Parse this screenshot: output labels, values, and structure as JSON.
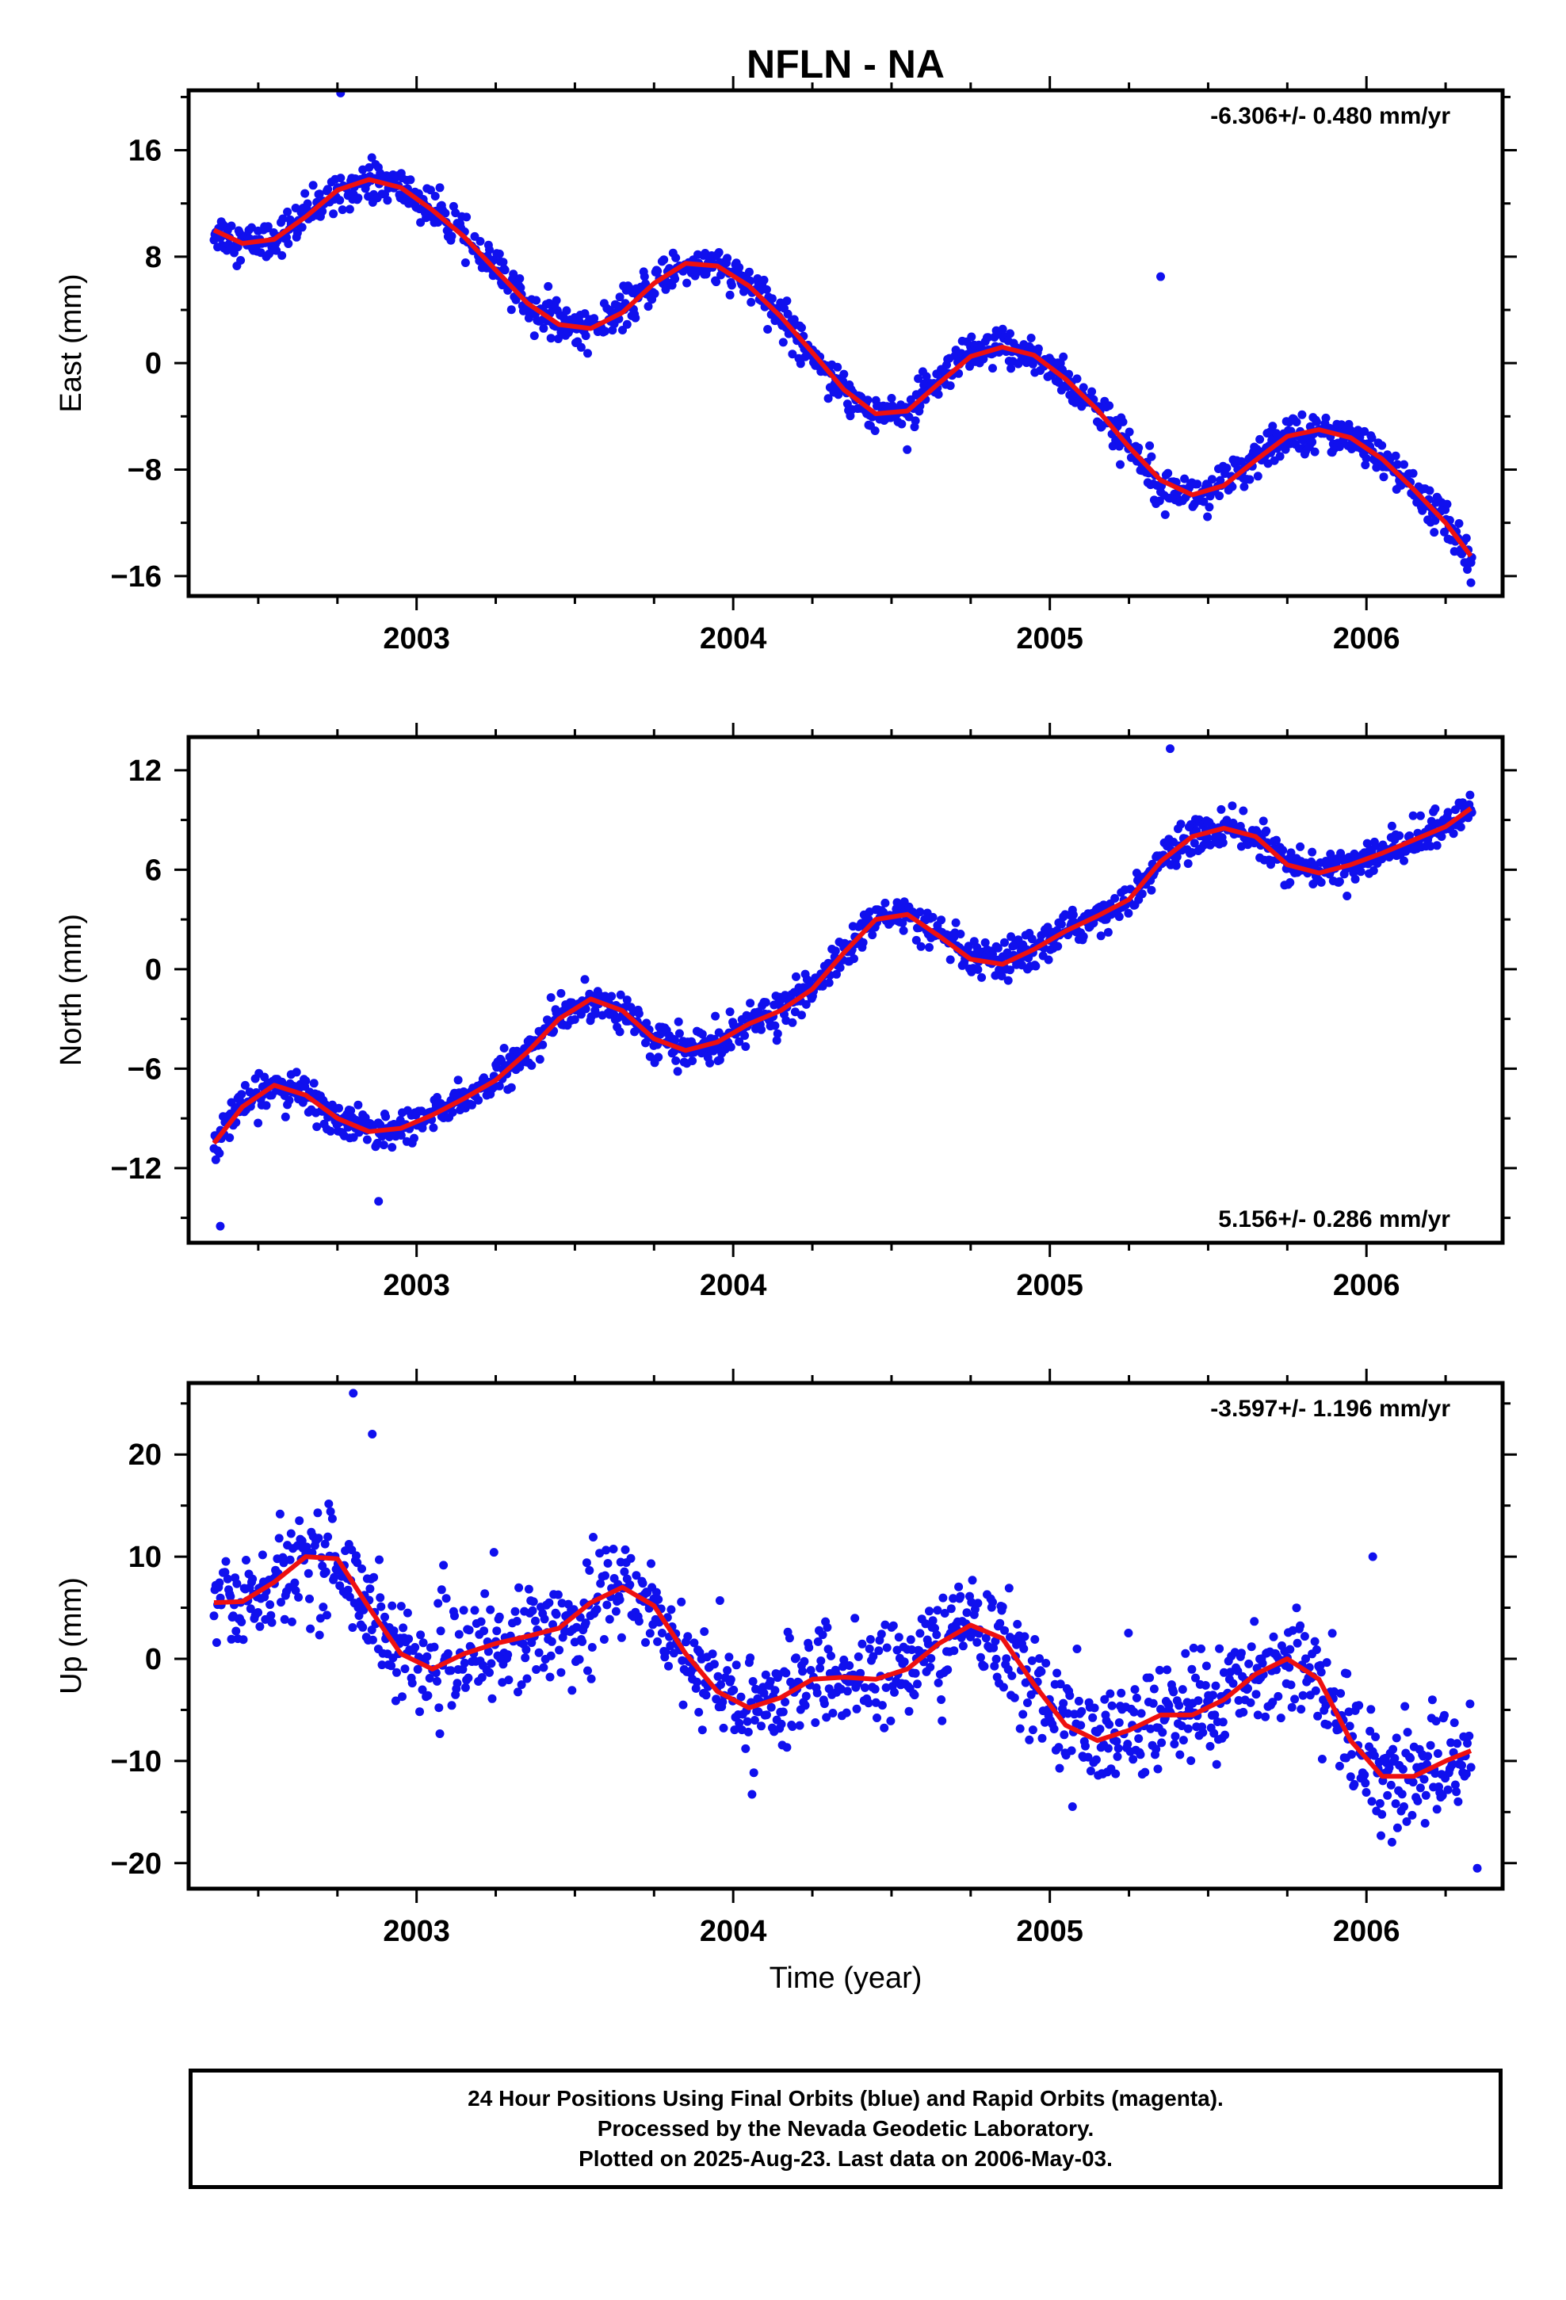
{
  "title": "NFLN - NA",
  "xlabel": "Time (year)",
  "caption": {
    "line1": "24 Hour Positions Using Final Orbits (blue) and Rapid Orbits (magenta).",
    "line2": "Processed by the Nevada Geodetic Laboratory.",
    "line3": "Plotted on 2025-Aug-23. Last data on 2006-May-03."
  },
  "colors": {
    "points": "#1010ee",
    "fit": "#ee1010",
    "frame": "#000000"
  },
  "chart_data": [
    {
      "type": "scatter",
      "ylabel": "East (mm)",
      "rate": "-6.306+/- 0.480 mm/yr",
      "rate_position": "top-right",
      "xlim": [
        2002.28,
        2006.43
      ],
      "ylim": [
        -17.5,
        20.5
      ],
      "xticks": [
        2003,
        2004,
        2005,
        2006
      ],
      "xtick_labels": [
        "2003",
        "2004",
        "2005",
        "2006"
      ],
      "yticks": [
        -16,
        -8,
        0,
        8,
        16
      ],
      "ytick_labels": [
        "−16",
        "−8",
        "0",
        "8",
        "16"
      ],
      "trend": {
        "intercept": 9.0,
        "slope": -6.306
      },
      "seasonal": {
        "amplitude": 3.0,
        "peak": 0.84
      },
      "noise": 1.2,
      "outliers": [
        {
          "x": 2002.76,
          "y": 20.3
        },
        {
          "x": 2005.35,
          "y": 6.5
        },
        {
          "x": 2006.33,
          "y": -16.5
        }
      ],
      "fit": {
        "x": [
          2002.36,
          2002.45,
          2002.55,
          2002.65,
          2002.75,
          2002.85,
          2002.95,
          2003.05,
          2003.15,
          2003.25,
          2003.35,
          2003.45,
          2003.55,
          2003.65,
          2003.75,
          2003.85,
          2003.95,
          2004.05,
          2004.15,
          2004.25,
          2004.35,
          2004.45,
          2004.55,
          2004.65,
          2004.75,
          2004.85,
          2004.95,
          2005.05,
          2005.15,
          2005.25,
          2005.35,
          2005.45,
          2005.55,
          2005.65,
          2005.75,
          2005.85,
          2005.95,
          2006.05,
          2006.15,
          2006.25,
          2006.33
        ],
        "y": [
          10.0,
          9.0,
          9.3,
          11.0,
          13.0,
          13.8,
          13.2,
          11.5,
          9.5,
          7.0,
          4.5,
          2.9,
          2.6,
          3.8,
          6.0,
          7.5,
          7.3,
          5.8,
          3.5,
          0.8,
          -2.0,
          -3.8,
          -3.6,
          -1.5,
          0.5,
          1.2,
          0.6,
          -1.2,
          -3.5,
          -6.3,
          -8.8,
          -9.9,
          -9.2,
          -7.3,
          -5.5,
          -5.0,
          -5.6,
          -7.2,
          -9.5,
          -12.0,
          -14.5
        ]
      }
    },
    {
      "type": "scatter",
      "ylabel": "North (mm)",
      "rate": "5.156+/- 0.286 mm/yr",
      "rate_position": "bottom-right",
      "xlim": [
        2002.28,
        2006.43
      ],
      "ylim": [
        -16.5,
        14.0
      ],
      "xticks": [
        2003,
        2004,
        2005,
        2006
      ],
      "xtick_labels": [
        "2003",
        "2004",
        "2005",
        "2006"
      ],
      "yticks": [
        -12,
        -6,
        0,
        6,
        12
      ],
      "ytick_labels": [
        "−12",
        "−6",
        "0",
        "6",
        "12"
      ],
      "trend": {
        "intercept": -10.0,
        "slope": 5.156
      },
      "seasonal": {
        "amplitude": 1.6,
        "peak": 0.6
      },
      "noise": 0.9,
      "outliers": [
        {
          "x": 2002.38,
          "y": -15.5
        },
        {
          "x": 2005.38,
          "y": 13.3
        },
        {
          "x": 2002.88,
          "y": -14.0
        }
      ],
      "fit": {
        "x": [
          2002.36,
          2002.45,
          2002.55,
          2002.65,
          2002.75,
          2002.85,
          2002.95,
          2003.05,
          2003.15,
          2003.25,
          2003.35,
          2003.45,
          2003.55,
          2003.65,
          2003.75,
          2003.85,
          2003.95,
          2004.05,
          2004.15,
          2004.25,
          2004.35,
          2004.45,
          2004.55,
          2004.65,
          2004.75,
          2004.85,
          2004.95,
          2005.05,
          2005.15,
          2005.25,
          2005.35,
          2005.45,
          2005.55,
          2005.65,
          2005.75,
          2005.85,
          2005.95,
          2006.05,
          2006.15,
          2006.25,
          2006.33
        ],
        "y": [
          -10.5,
          -8.3,
          -7.0,
          -7.6,
          -9.0,
          -9.8,
          -9.6,
          -8.8,
          -7.8,
          -6.7,
          -5.0,
          -3.0,
          -1.8,
          -2.5,
          -4.2,
          -4.9,
          -4.4,
          -3.3,
          -2.5,
          -1.2,
          1.0,
          3.0,
          3.3,
          2.0,
          0.6,
          0.3,
          1.2,
          2.3,
          3.2,
          4.2,
          6.5,
          8.0,
          8.5,
          8.0,
          6.3,
          5.8,
          6.3,
          7.0,
          7.8,
          8.6,
          9.7
        ]
      }
    },
    {
      "type": "scatter",
      "ylabel": "Up (mm)",
      "rate": "-3.597+/- 1.196 mm/yr",
      "rate_position": "top-right",
      "xlim": [
        2002.28,
        2006.43
      ],
      "ylim": [
        -22.5,
        27.0
      ],
      "xticks": [
        2003,
        2004,
        2005,
        2006
      ],
      "xtick_labels": [
        "2003",
        "2004",
        "2005",
        "2006"
      ],
      "yticks": [
        -20,
        -10,
        0,
        10,
        20
      ],
      "ytick_labels": [
        "−20",
        "−10",
        "0",
        "10",
        "20"
      ],
      "trend": {
        "intercept": 5.0,
        "slope": -3.597
      },
      "seasonal": {
        "amplitude": 4.5,
        "peak": 0.72
      },
      "noise": 4.2,
      "outliers": [
        {
          "x": 2002.8,
          "y": 26.0
        },
        {
          "x": 2002.86,
          "y": 22.0
        },
        {
          "x": 2006.35,
          "y": -20.5
        },
        {
          "x": 2006.02,
          "y": 10.0
        }
      ],
      "fit": {
        "x": [
          2002.36,
          2002.45,
          2002.55,
          2002.65,
          2002.75,
          2002.85,
          2002.95,
          2003.05,
          2003.15,
          2003.25,
          2003.35,
          2003.45,
          2003.55,
          2003.65,
          2003.75,
          2003.85,
          2003.95,
          2004.05,
          2004.15,
          2004.25,
          2004.35,
          2004.45,
          2004.55,
          2004.65,
          2004.75,
          2004.85,
          2004.95,
          2005.05,
          2005.15,
          2005.25,
          2005.35,
          2005.45,
          2005.55,
          2005.65,
          2005.75,
          2005.85,
          2005.95,
          2006.05,
          2006.15,
          2006.25,
          2006.33
        ],
        "y": [
          5.5,
          5.6,
          7.5,
          10.0,
          9.8,
          5.0,
          0.5,
          -1.0,
          0.5,
          1.5,
          2.2,
          3.0,
          5.5,
          7.0,
          5.2,
          0.5,
          -3.2,
          -4.8,
          -3.8,
          -2.0,
          -1.8,
          -2.0,
          -1.0,
          1.5,
          3.3,
          2.0,
          -2.5,
          -6.5,
          -8.0,
          -7.0,
          -5.5,
          -5.5,
          -4.0,
          -1.5,
          0.0,
          -2.0,
          -8.0,
          -11.5,
          -11.5,
          -10.0,
          -9.0
        ]
      }
    }
  ]
}
